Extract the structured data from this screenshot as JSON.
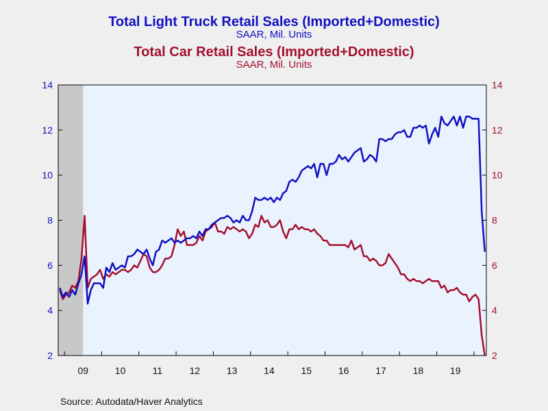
{
  "colors": {
    "background": "#efefef",
    "plot_background": "#eaf2fd",
    "truck": "#1010c0",
    "car": "#a3102f",
    "recession": "#c8c8c8",
    "axis": "#000000"
  },
  "source": "Source:  Autodata/Haver Analytics",
  "chart_data": {
    "type": "line",
    "titles": [
      {
        "title": "Total Light Truck Retail Sales (Imported+Domestic)",
        "subtitle": "SAAR, Mil. Units"
      },
      {
        "title": "Total Car Retail Sales (Imported+Domestic)",
        "subtitle": "SAAR, Mil. Units"
      }
    ],
    "x_start": "2008-11",
    "x_end": "2020-04",
    "x_ticks": [
      "09",
      "10",
      "11",
      "12",
      "13",
      "14",
      "15",
      "16",
      "17",
      "18",
      "19"
    ],
    "y_left": {
      "min": 2,
      "max": 14,
      "ticks": [
        "2",
        "4",
        "6",
        "8",
        "10",
        "12",
        "14"
      ]
    },
    "y_right": {
      "min": 2,
      "max": 14,
      "ticks": [
        "2",
        "4",
        "6",
        "8",
        "10",
        "12",
        "14"
      ]
    },
    "recession": {
      "start": "2008-11",
      "end": "2009-06"
    },
    "grid": false,
    "series": [
      {
        "axis": "left",
        "color_key": "truck",
        "points": [
          [
            "2008-11",
            5.0
          ],
          [
            "2008-12",
            4.6
          ],
          [
            "2009-01",
            4.8
          ],
          [
            "2009-02",
            4.6
          ],
          [
            "2009-03",
            4.9
          ],
          [
            "2009-04",
            4.7
          ],
          [
            "2009-05",
            5.2
          ],
          [
            "2009-06",
            5.6
          ],
          [
            "2009-07",
            6.4
          ],
          [
            "2009-08",
            4.3
          ],
          [
            "2009-09",
            4.9
          ],
          [
            "2009-10",
            5.2
          ],
          [
            "2009-11",
            5.2
          ],
          [
            "2009-12",
            5.2
          ],
          [
            "2010-01",
            5.0
          ],
          [
            "2010-02",
            5.9
          ],
          [
            "2010-03",
            5.7
          ],
          [
            "2010-04",
            6.1
          ],
          [
            "2010-05",
            5.8
          ],
          [
            "2010-06",
            5.9
          ],
          [
            "2010-07",
            6.0
          ],
          [
            "2010-08",
            5.9
          ],
          [
            "2010-09",
            6.4
          ],
          [
            "2010-10",
            6.4
          ],
          [
            "2010-11",
            6.5
          ],
          [
            "2010-12",
            6.7
          ],
          [
            "2011-01",
            6.6
          ],
          [
            "2011-02",
            6.5
          ],
          [
            "2011-03",
            6.7
          ],
          [
            "2011-04",
            6.3
          ],
          [
            "2011-05",
            6.0
          ],
          [
            "2011-06",
            6.6
          ],
          [
            "2011-07",
            6.7
          ],
          [
            "2011-08",
            7.1
          ],
          [
            "2011-09",
            7.0
          ],
          [
            "2011-10",
            7.1
          ],
          [
            "2011-11",
            7.2
          ],
          [
            "2011-12",
            7.0
          ],
          [
            "2012-01",
            7.1
          ],
          [
            "2012-02",
            7.0
          ],
          [
            "2012-03",
            7.1
          ],
          [
            "2012-04",
            7.2
          ],
          [
            "2012-05",
            7.2
          ],
          [
            "2012-06",
            7.3
          ],
          [
            "2012-07",
            7.2
          ],
          [
            "2012-08",
            7.5
          ],
          [
            "2012-09",
            7.3
          ],
          [
            "2012-10",
            7.6
          ],
          [
            "2012-11",
            7.6
          ],
          [
            "2012-12",
            7.8
          ],
          [
            "2013-01",
            7.9
          ],
          [
            "2013-02",
            8.0
          ],
          [
            "2013-03",
            8.1
          ],
          [
            "2013-04",
            8.1
          ],
          [
            "2013-05",
            8.2
          ],
          [
            "2013-06",
            8.1
          ],
          [
            "2013-07",
            7.9
          ],
          [
            "2013-08",
            8.0
          ],
          [
            "2013-09",
            7.9
          ],
          [
            "2013-10",
            8.2
          ],
          [
            "2013-11",
            8.0
          ],
          [
            "2013-12",
            8.0
          ],
          [
            "2014-01",
            8.4
          ],
          [
            "2014-02",
            9.0
          ],
          [
            "2014-03",
            8.9
          ],
          [
            "2014-04",
            8.9
          ],
          [
            "2014-05",
            9.0
          ],
          [
            "2014-06",
            8.9
          ],
          [
            "2014-07",
            9.0
          ],
          [
            "2014-08",
            8.8
          ],
          [
            "2014-09",
            9.0
          ],
          [
            "2014-10",
            8.9
          ],
          [
            "2014-11",
            9.2
          ],
          [
            "2014-12",
            9.3
          ],
          [
            "2015-01",
            9.7
          ],
          [
            "2015-02",
            9.8
          ],
          [
            "2015-03",
            9.7
          ],
          [
            "2015-04",
            9.9
          ],
          [
            "2015-05",
            10.2
          ],
          [
            "2015-06",
            10.3
          ],
          [
            "2015-07",
            10.4
          ],
          [
            "2015-08",
            10.3
          ],
          [
            "2015-09",
            10.5
          ],
          [
            "2015-10",
            9.9
          ],
          [
            "2015-11",
            10.5
          ],
          [
            "2015-12",
            10.5
          ],
          [
            "2016-01",
            10.0
          ],
          [
            "2016-02",
            10.5
          ],
          [
            "2016-03",
            10.5
          ],
          [
            "2016-04",
            10.6
          ],
          [
            "2016-05",
            10.9
          ],
          [
            "2016-06",
            10.7
          ],
          [
            "2016-07",
            10.8
          ],
          [
            "2016-08",
            10.6
          ],
          [
            "2016-09",
            10.8
          ],
          [
            "2016-10",
            11.0
          ],
          [
            "2016-11",
            11.1
          ],
          [
            "2016-12",
            11.2
          ],
          [
            "2017-01",
            10.6
          ],
          [
            "2017-02",
            10.7
          ],
          [
            "2017-03",
            10.9
          ],
          [
            "2017-04",
            10.8
          ],
          [
            "2017-05",
            10.6
          ],
          [
            "2017-06",
            11.6
          ],
          [
            "2017-07",
            11.6
          ],
          [
            "2017-08",
            11.5
          ],
          [
            "2017-09",
            11.6
          ],
          [
            "2017-10",
            11.6
          ],
          [
            "2017-11",
            11.8
          ],
          [
            "2017-12",
            11.9
          ],
          [
            "2018-01",
            11.9
          ],
          [
            "2018-02",
            12.0
          ],
          [
            "2018-03",
            11.7
          ],
          [
            "2018-04",
            11.7
          ],
          [
            "2018-05",
            12.1
          ],
          [
            "2018-06",
            12.1
          ],
          [
            "2018-07",
            12.2
          ],
          [
            "2018-08",
            12.1
          ],
          [
            "2018-09",
            12.2
          ],
          [
            "2018-10",
            11.4
          ],
          [
            "2018-11",
            11.8
          ],
          [
            "2018-12",
            12.1
          ],
          [
            "2019-01",
            11.7
          ],
          [
            "2019-02",
            12.6
          ],
          [
            "2019-03",
            12.3
          ],
          [
            "2019-04",
            12.2
          ],
          [
            "2019-05",
            12.4
          ],
          [
            "2019-06",
            12.6
          ],
          [
            "2019-07",
            12.2
          ],
          [
            "2019-08",
            12.6
          ],
          [
            "2019-09",
            12.1
          ],
          [
            "2019-10",
            12.6
          ],
          [
            "2019-11",
            12.6
          ],
          [
            "2019-12",
            12.5
          ],
          [
            "2020-01",
            12.5
          ],
          [
            "2020-02",
            12.5
          ],
          [
            "2020-03",
            8.4
          ],
          [
            "2020-04",
            6.6
          ]
        ]
      },
      {
        "axis": "right",
        "color_key": "car",
        "points": [
          [
            "2008-11",
            4.9
          ],
          [
            "2008-12",
            4.5
          ],
          [
            "2009-01",
            4.7
          ],
          [
            "2009-02",
            4.8
          ],
          [
            "2009-03",
            5.1
          ],
          [
            "2009-04",
            5.0
          ],
          [
            "2009-05",
            5.3
          ],
          [
            "2009-06",
            6.3
          ],
          [
            "2009-07",
            8.2
          ],
          [
            "2009-08",
            5.0
          ],
          [
            "2009-09",
            5.4
          ],
          [
            "2009-10",
            5.5
          ],
          [
            "2009-11",
            5.6
          ],
          [
            "2009-12",
            5.8
          ],
          [
            "2010-01",
            5.4
          ],
          [
            "2010-02",
            5.6
          ],
          [
            "2010-03",
            5.5
          ],
          [
            "2010-04",
            5.7
          ],
          [
            "2010-05",
            5.6
          ],
          [
            "2010-06",
            5.7
          ],
          [
            "2010-07",
            5.8
          ],
          [
            "2010-08",
            5.8
          ],
          [
            "2010-09",
            5.7
          ],
          [
            "2010-10",
            5.8
          ],
          [
            "2010-11",
            6.0
          ],
          [
            "2010-12",
            5.9
          ],
          [
            "2011-01",
            6.2
          ],
          [
            "2011-02",
            6.5
          ],
          [
            "2011-03",
            6.4
          ],
          [
            "2011-04",
            5.9
          ],
          [
            "2011-05",
            5.7
          ],
          [
            "2011-06",
            5.7
          ],
          [
            "2011-07",
            5.8
          ],
          [
            "2011-08",
            6.0
          ],
          [
            "2011-09",
            6.3
          ],
          [
            "2011-10",
            6.3
          ],
          [
            "2011-11",
            6.4
          ],
          [
            "2011-12",
            6.9
          ],
          [
            "2012-01",
            7.6
          ],
          [
            "2012-02",
            7.3
          ],
          [
            "2012-03",
            7.5
          ],
          [
            "2012-04",
            6.9
          ],
          [
            "2012-05",
            6.9
          ],
          [
            "2012-06",
            6.9
          ],
          [
            "2012-07",
            7.0
          ],
          [
            "2012-08",
            7.3
          ],
          [
            "2012-09",
            7.1
          ],
          [
            "2012-10",
            7.5
          ],
          [
            "2012-11",
            7.6
          ],
          [
            "2012-12",
            7.7
          ],
          [
            "2013-01",
            7.9
          ],
          [
            "2013-02",
            7.5
          ],
          [
            "2013-03",
            7.5
          ],
          [
            "2013-04",
            7.4
          ],
          [
            "2013-05",
            7.7
          ],
          [
            "2013-06",
            7.6
          ],
          [
            "2013-07",
            7.7
          ],
          [
            "2013-08",
            7.6
          ],
          [
            "2013-09",
            7.5
          ],
          [
            "2013-10",
            7.6
          ],
          [
            "2013-11",
            7.5
          ],
          [
            "2013-12",
            7.2
          ],
          [
            "2014-01",
            7.4
          ],
          [
            "2014-02",
            7.8
          ],
          [
            "2014-03",
            7.7
          ],
          [
            "2014-04",
            8.2
          ],
          [
            "2014-05",
            7.9
          ],
          [
            "2014-06",
            8.0
          ],
          [
            "2014-07",
            7.7
          ],
          [
            "2014-08",
            7.7
          ],
          [
            "2014-09",
            7.8
          ],
          [
            "2014-10",
            8.0
          ],
          [
            "2014-11",
            7.5
          ],
          [
            "2014-12",
            7.2
          ],
          [
            "2015-01",
            7.6
          ],
          [
            "2015-02",
            7.6
          ],
          [
            "2015-03",
            7.8
          ],
          [
            "2015-04",
            7.6
          ],
          [
            "2015-05",
            7.7
          ],
          [
            "2015-06",
            7.6
          ],
          [
            "2015-07",
            7.6
          ],
          [
            "2015-08",
            7.5
          ],
          [
            "2015-09",
            7.6
          ],
          [
            "2015-10",
            7.4
          ],
          [
            "2015-11",
            7.3
          ],
          [
            "2015-12",
            7.1
          ],
          [
            "2016-01",
            7.1
          ],
          [
            "2016-02",
            6.9
          ],
          [
            "2016-03",
            6.9
          ],
          [
            "2016-04",
            6.9
          ],
          [
            "2016-05",
            6.9
          ],
          [
            "2016-06",
            6.9
          ],
          [
            "2016-07",
            6.9
          ],
          [
            "2016-08",
            6.8
          ],
          [
            "2016-09",
            7.1
          ],
          [
            "2016-10",
            6.7
          ],
          [
            "2016-11",
            6.8
          ],
          [
            "2016-12",
            6.9
          ],
          [
            "2017-01",
            6.4
          ],
          [
            "2017-02",
            6.4
          ],
          [
            "2017-03",
            6.2
          ],
          [
            "2017-04",
            6.3
          ],
          [
            "2017-05",
            6.2
          ],
          [
            "2017-06",
            6.0
          ],
          [
            "2017-07",
            6.0
          ],
          [
            "2017-08",
            6.1
          ],
          [
            "2017-09",
            6.5
          ],
          [
            "2017-10",
            6.3
          ],
          [
            "2017-11",
            6.1
          ],
          [
            "2017-12",
            5.9
          ],
          [
            "2018-01",
            5.6
          ],
          [
            "2018-02",
            5.6
          ],
          [
            "2018-03",
            5.4
          ],
          [
            "2018-04",
            5.3
          ],
          [
            "2018-05",
            5.4
          ],
          [
            "2018-06",
            5.3
          ],
          [
            "2018-07",
            5.3
          ],
          [
            "2018-08",
            5.2
          ],
          [
            "2018-09",
            5.3
          ],
          [
            "2018-10",
            5.4
          ],
          [
            "2018-11",
            5.3
          ],
          [
            "2018-12",
            5.3
          ],
          [
            "2019-01",
            5.3
          ],
          [
            "2019-02",
            5.0
          ],
          [
            "2019-03",
            5.1
          ],
          [
            "2019-04",
            4.8
          ],
          [
            "2019-05",
            4.9
          ],
          [
            "2019-06",
            4.9
          ],
          [
            "2019-07",
            5.0
          ],
          [
            "2019-08",
            4.8
          ],
          [
            "2019-09",
            4.7
          ],
          [
            "2019-10",
            4.7
          ],
          [
            "2019-11",
            4.4
          ],
          [
            "2019-12",
            4.6
          ],
          [
            "2020-01",
            4.7
          ],
          [
            "2020-02",
            4.5
          ],
          [
            "2020-03",
            2.9
          ],
          [
            "2020-04",
            2.0
          ]
        ]
      }
    ]
  }
}
